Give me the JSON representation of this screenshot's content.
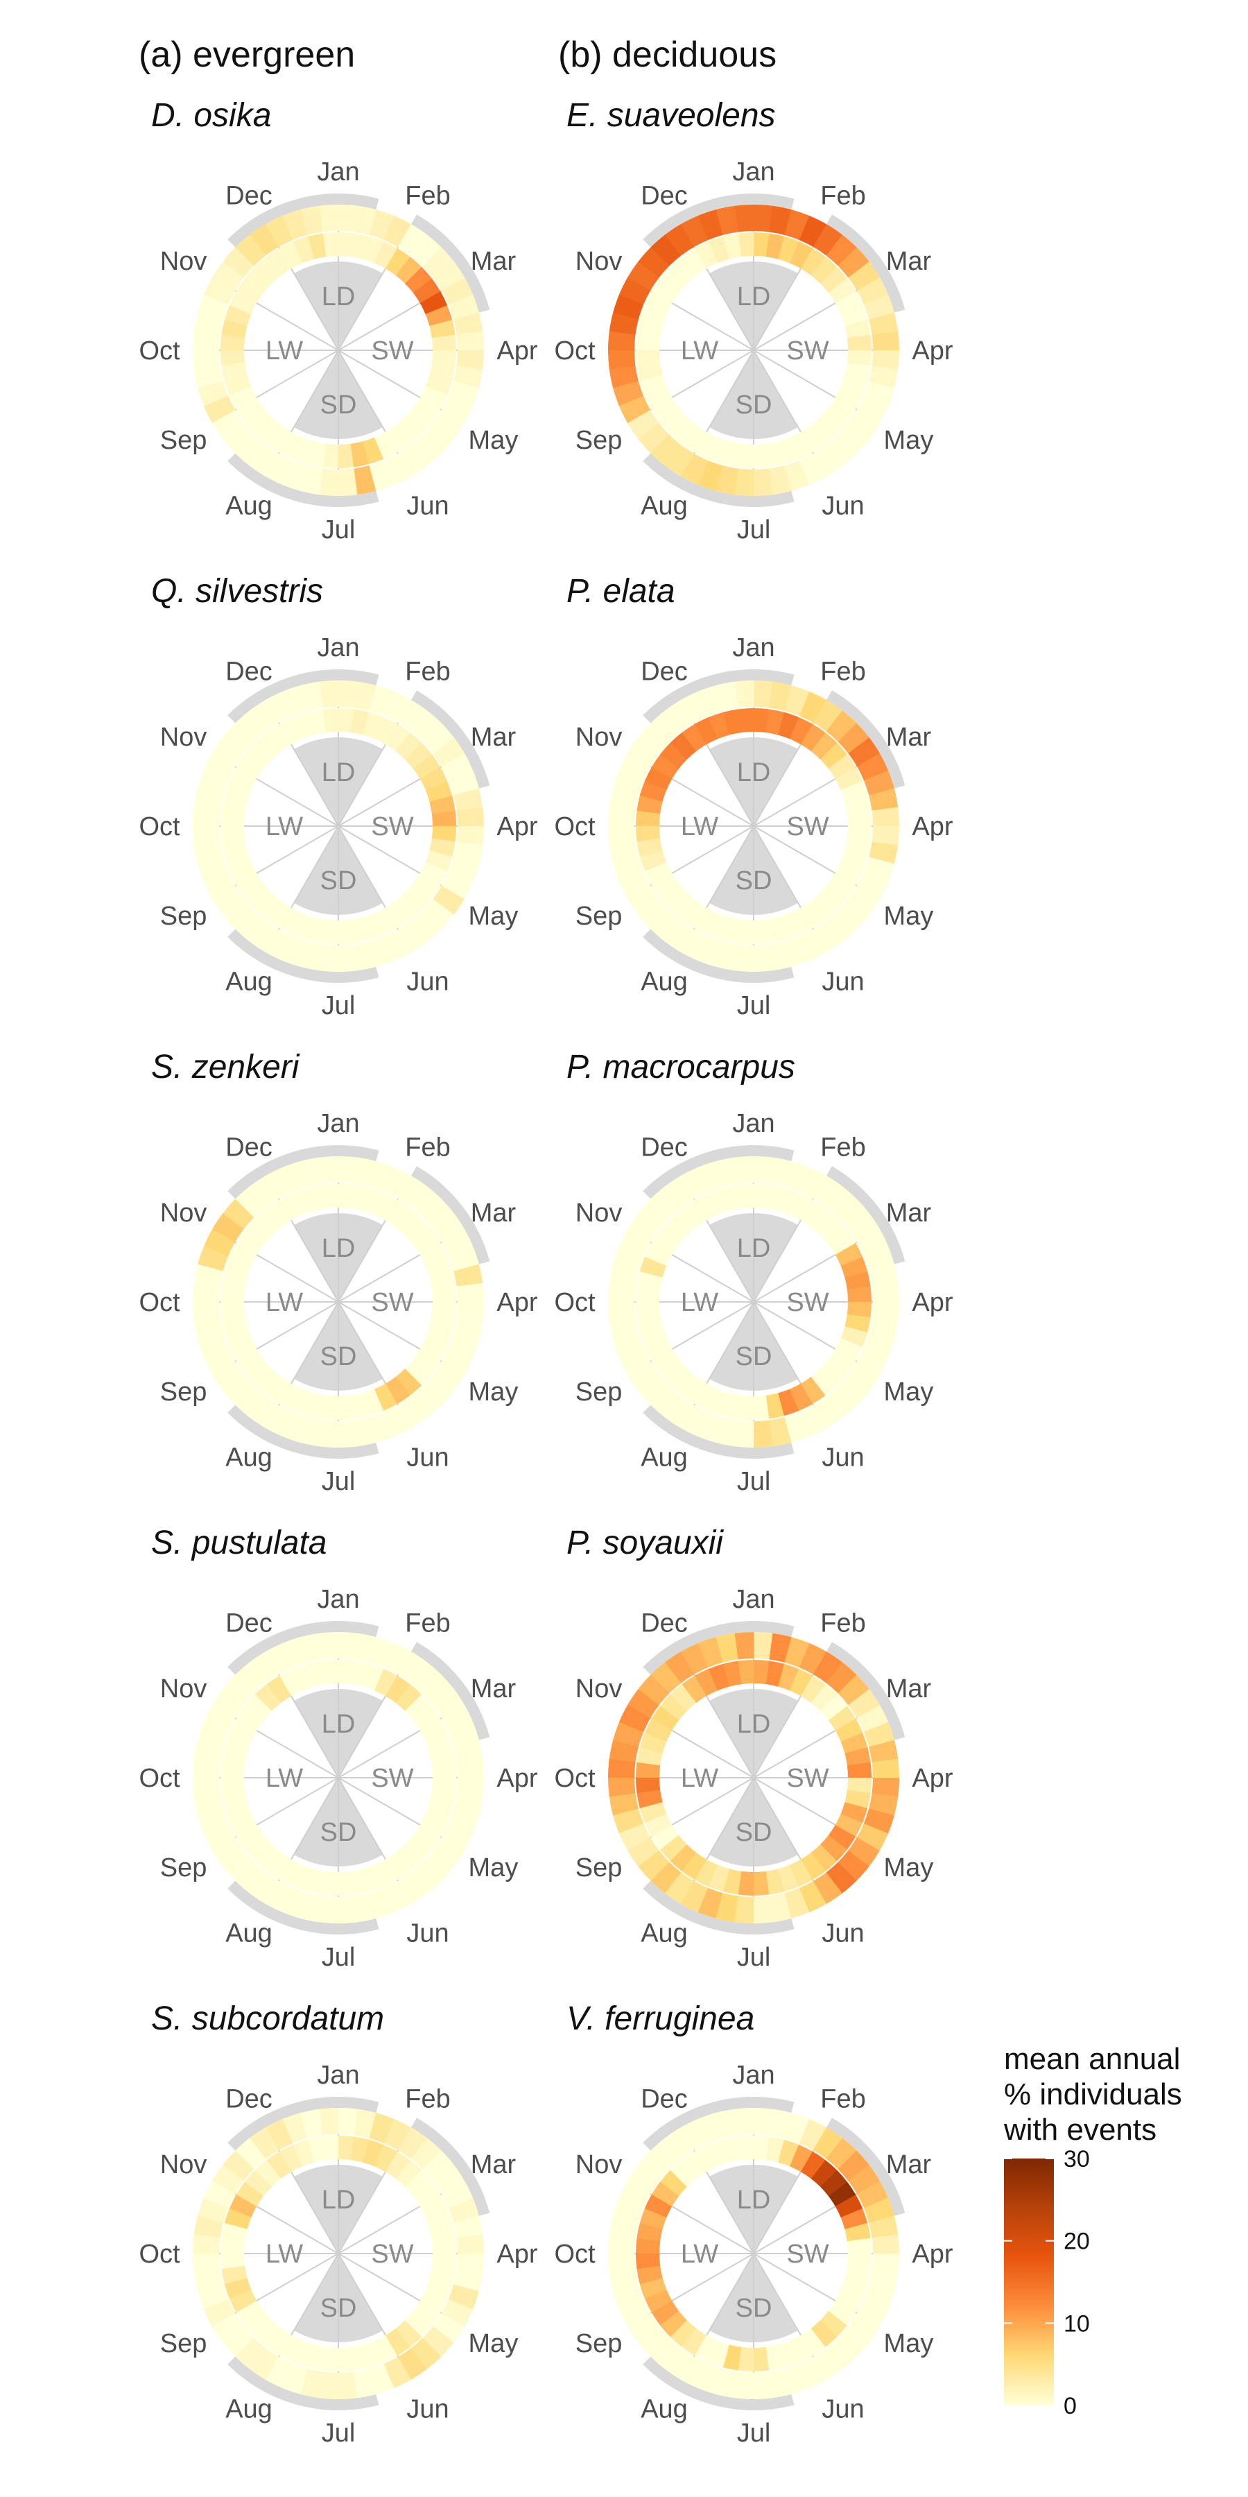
{
  "panel_headers": {
    "a": "(a) evergreen",
    "b": "(b) deciduous"
  },
  "months": [
    "Jan",
    "Feb",
    "Mar",
    "Apr",
    "May",
    "Jun",
    "Jul",
    "Aug",
    "Sep",
    "Oct",
    "Nov",
    "Dec"
  ],
  "seasons": [
    "LD",
    "SW",
    "SD",
    "LW"
  ],
  "legend": {
    "title_lines": [
      "mean annual",
      "% individuals",
      "with events"
    ],
    "ticks": [
      0,
      10,
      20,
      30
    ],
    "range": [
      0,
      30
    ],
    "colors": [
      "#ffffd9",
      "#fed976",
      "#fd8d3c",
      "#e8550f",
      "#b8420a",
      "#7f2704"
    ]
  },
  "colors": {
    "season_sector": "#d9d9d9",
    "grid": "#cfcfcf",
    "month_band": "#d9d9d9"
  },
  "chart_data": [
    {
      "type": "radial-heatmap",
      "group": "evergreen",
      "species": "D. osika",
      "ring_outer": [
        1,
        1,
        2,
        3,
        0,
        0,
        1,
        1,
        2,
        1,
        2,
        1,
        2,
        1,
        0,
        0,
        0,
        0,
        0,
        0,
        0,
        0,
        8,
        1,
        1,
        0,
        0,
        0,
        0,
        0,
        0,
        0,
        3,
        1,
        0,
        0,
        0,
        0,
        0,
        1,
        1,
        2,
        4,
        5,
        4,
        3,
        2,
        1
      ],
      "ring_inner": [
        1,
        1,
        1,
        2,
        6,
        8,
        12,
        14,
        18,
        10,
        5,
        2,
        1,
        1,
        1,
        0,
        0,
        0,
        0,
        0,
        0,
        6,
        7,
        3,
        1,
        0,
        0,
        0,
        0,
        0,
        0,
        0,
        0,
        1,
        1,
        2,
        3,
        4,
        3,
        1,
        1,
        1,
        1,
        1,
        1,
        2,
        4,
        1
      ]
    },
    {
      "type": "radial-heatmap",
      "group": "deciduous",
      "species": "E. suaveolens",
      "ring_outer": [
        15,
        16,
        14,
        17,
        15,
        12,
        10,
        5,
        3,
        2,
        4,
        5,
        2,
        1,
        0,
        0,
        0,
        0,
        0,
        0,
        0,
        1,
        2,
        3,
        4,
        5,
        6,
        5,
        4,
        4,
        3,
        2,
        8,
        10,
        12,
        13,
        14,
        16,
        17,
        16,
        15,
        16,
        17,
        16,
        15,
        16,
        14,
        15
      ],
      "ring_inner": [
        6,
        8,
        6,
        7,
        5,
        4,
        3,
        1,
        0,
        0,
        1,
        3,
        1,
        0,
        0,
        0,
        0,
        0,
        0,
        0,
        0,
        0,
        0,
        0,
        0,
        0,
        0,
        0,
        0,
        0,
        0,
        0,
        0,
        0,
        1,
        1,
        0,
        0,
        0,
        0,
        0,
        0,
        0,
        0,
        1,
        2,
        1,
        3
      ]
    },
    {
      "type": "radial-heatmap",
      "group": "evergreen",
      "species": "Q. silvestris",
      "ring_outer": [
        1,
        1,
        0,
        0,
        0,
        0,
        0,
        1,
        0,
        0,
        2,
        3,
        1,
        0,
        0,
        0,
        3,
        0,
        0,
        0,
        0,
        0,
        0,
        0,
        0,
        0,
        0,
        0,
        0,
        0,
        0,
        0,
        0,
        0,
        0,
        0,
        0,
        0,
        0,
        0,
        0,
        0,
        0,
        0,
        0,
        0,
        0,
        1
      ],
      "ring_inner": [
        1,
        2,
        1,
        1,
        1,
        2,
        3,
        4,
        5,
        6,
        8,
        9,
        6,
        3,
        1,
        0,
        0,
        0,
        0,
        0,
        0,
        0,
        0,
        0,
        0,
        0,
        0,
        0,
        0,
        0,
        0,
        0,
        0,
        0,
        0,
        0,
        0,
        0,
        0,
        0,
        0,
        0,
        0,
        0,
        0,
        0,
        0,
        1
      ]
    },
    {
      "type": "radial-heatmap",
      "group": "deciduous",
      "species": "P. elata",
      "ring_outer": [
        3,
        4,
        3,
        6,
        5,
        8,
        10,
        14,
        12,
        10,
        8,
        3,
        2,
        4,
        0,
        0,
        0,
        0,
        0,
        0,
        0,
        0,
        0,
        0,
        0,
        0,
        0,
        0,
        0,
        0,
        0,
        0,
        0,
        0,
        0,
        0,
        0,
        0,
        0,
        0,
        0,
        0,
        0,
        0,
        0,
        0,
        0,
        1
      ],
      "ring_inner": [
        13,
        12,
        14,
        12,
        10,
        8,
        6,
        3,
        2,
        0,
        0,
        0,
        0,
        0,
        0,
        0,
        0,
        0,
        0,
        0,
        0,
        0,
        0,
        0,
        0,
        0,
        0,
        0,
        0,
        0,
        0,
        0,
        0,
        2,
        3,
        5,
        7,
        10,
        12,
        13,
        12,
        13,
        14,
        12,
        13,
        12,
        13,
        13
      ]
    },
    {
      "type": "radial-heatmap",
      "group": "evergreen",
      "species": "S. zenkeri",
      "ring_outer": [
        0,
        0,
        0,
        0,
        0,
        0,
        0,
        0,
        0,
        0,
        4,
        0,
        0,
        0,
        0,
        0,
        0,
        0,
        0,
        0,
        0,
        0,
        0,
        0,
        0,
        0,
        0,
        0,
        0,
        0,
        0,
        0,
        0,
        0,
        0,
        0,
        0,
        0,
        5,
        6,
        7,
        5,
        0,
        0,
        0,
        0,
        0,
        0
      ],
      "ring_inner": [
        0,
        0,
        0,
        0,
        0,
        0,
        0,
        0,
        0,
        0,
        0,
        0,
        0,
        0,
        0,
        0,
        0,
        0,
        7,
        8,
        6,
        0,
        0,
        0,
        0,
        0,
        0,
        0,
        0,
        0,
        0,
        0,
        0,
        0,
        0,
        0,
        0,
        0,
        0,
        0,
        0,
        0,
        0,
        0,
        0,
        0,
        0,
        0
      ]
    },
    {
      "type": "radial-heatmap",
      "group": "deciduous",
      "species": "P. macrocarpus",
      "ring_outer": [
        0,
        0,
        0,
        0,
        0,
        0,
        0,
        0,
        0,
        0,
        0,
        0,
        0,
        0,
        0,
        0,
        0,
        0,
        0,
        0,
        0,
        0,
        4,
        5,
        0,
        0,
        0,
        0,
        0,
        0,
        0,
        0,
        0,
        0,
        0,
        0,
        0,
        0,
        0,
        0,
        0,
        0,
        0,
        0,
        0,
        0,
        0,
        0
      ],
      "ring_inner": [
        0,
        0,
        0,
        0,
        0,
        0,
        0,
        0,
        8,
        10,
        11,
        10,
        8,
        6,
        2,
        0,
        0,
        0,
        0,
        8,
        10,
        12,
        6,
        0,
        0,
        0,
        0,
        0,
        0,
        0,
        0,
        0,
        0,
        0,
        0,
        0,
        0,
        0,
        4,
        0,
        0,
        0,
        0,
        0,
        0,
        0,
        0,
        0
      ]
    },
    {
      "type": "radial-heatmap",
      "group": "evergreen",
      "species": "S. pustulata",
      "ring_outer": [
        0,
        0,
        0,
        0,
        0,
        0,
        0,
        0,
        0,
        0,
        0,
        0,
        0,
        0,
        0,
        0,
        0,
        0,
        0,
        0,
        0,
        0,
        0,
        0,
        0,
        0,
        0,
        0,
        0,
        0,
        0,
        0,
        0,
        0,
        0,
        0,
        0,
        0,
        0,
        0,
        0,
        0,
        0,
        0,
        0,
        0,
        0,
        0
      ],
      "ring_inner": [
        0,
        0,
        0,
        3,
        5,
        4,
        0,
        0,
        0,
        0,
        0,
        0,
        0,
        0,
        0,
        0,
        0,
        0,
        0,
        0,
        0,
        0,
        0,
        0,
        0,
        0,
        0,
        0,
        0,
        0,
        0,
        0,
        0,
        0,
        0,
        0,
        0,
        0,
        0,
        0,
        0,
        0,
        3,
        4,
        0,
        0,
        0,
        0
      ]
    },
    {
      "type": "radial-heatmap",
      "group": "deciduous",
      "species": "P. soyauxii",
      "ring_outer": [
        3,
        12,
        8,
        10,
        12,
        11,
        8,
        3,
        1,
        4,
        8,
        6,
        10,
        9,
        11,
        7,
        10,
        12,
        14,
        9,
        6,
        3,
        1,
        1,
        4,
        6,
        8,
        5,
        4,
        7,
        5,
        3,
        2,
        5,
        8,
        10,
        12,
        11,
        10,
        12,
        11,
        9,
        8,
        10,
        9,
        8,
        6,
        10
      ],
      "ring_inner": [
        10,
        12,
        8,
        6,
        3,
        1,
        0,
        4,
        6,
        8,
        10,
        12,
        3,
        5,
        10,
        8,
        12,
        10,
        7,
        6,
        4,
        3,
        4,
        8,
        9,
        5,
        3,
        4,
        6,
        7,
        4,
        0,
        1,
        3,
        12,
        14,
        10,
        3,
        4,
        5,
        6,
        4,
        3,
        8,
        10,
        12,
        11,
        9
      ]
    },
    {
      "type": "radial-heatmap",
      "group": "evergreen",
      "species": "S. subcordatum",
      "ring_outer": [
        0,
        1,
        4,
        3,
        2,
        1,
        0,
        0,
        0,
        1,
        0,
        1,
        0,
        0,
        3,
        1,
        0,
        2,
        4,
        5,
        3,
        0,
        0,
        1,
        1,
        1,
        0,
        0,
        1,
        1,
        0,
        0,
        1,
        0,
        0,
        0,
        1,
        2,
        1,
        0,
        1,
        2,
        0,
        2,
        3,
        1,
        0,
        1
      ],
      "ring_inner": [
        3,
        4,
        5,
        4,
        2,
        1,
        0,
        0,
        0,
        0,
        0,
        0,
        0,
        0,
        0,
        0,
        0,
        0,
        3,
        4,
        0,
        0,
        0,
        0,
        0,
        0,
        0,
        0,
        0,
        0,
        0,
        0,
        4,
        5,
        3,
        0,
        0,
        0,
        6,
        8,
        4,
        2,
        1,
        3,
        2,
        1,
        0,
        0
      ]
    },
    {
      "type": "radial-heatmap",
      "group": "deciduous",
      "species": "V. ferruginea",
      "ring_outer": [
        0,
        0,
        0,
        2,
        6,
        8,
        10,
        9,
        8,
        6,
        4,
        2,
        0,
        0,
        0,
        0,
        0,
        0,
        0,
        0,
        0,
        0,
        0,
        0,
        0,
        0,
        0,
        0,
        0,
        0,
        0,
        0,
        0,
        0,
        0,
        0,
        0,
        0,
        0,
        0,
        0,
        0,
        0,
        0,
        0,
        0,
        0,
        0
      ],
      "ring_inner": [
        0,
        1,
        5,
        10,
        16,
        22,
        25,
        28,
        20,
        12,
        6,
        0,
        0,
        0,
        0,
        0,
        0,
        4,
        5,
        0,
        0,
        0,
        0,
        4,
        3,
        6,
        0,
        0,
        3,
        4,
        8,
        10,
        9,
        8,
        10,
        12,
        11,
        10,
        9,
        12,
        8,
        6,
        0,
        0,
        0,
        0,
        0,
        0
      ]
    }
  ]
}
